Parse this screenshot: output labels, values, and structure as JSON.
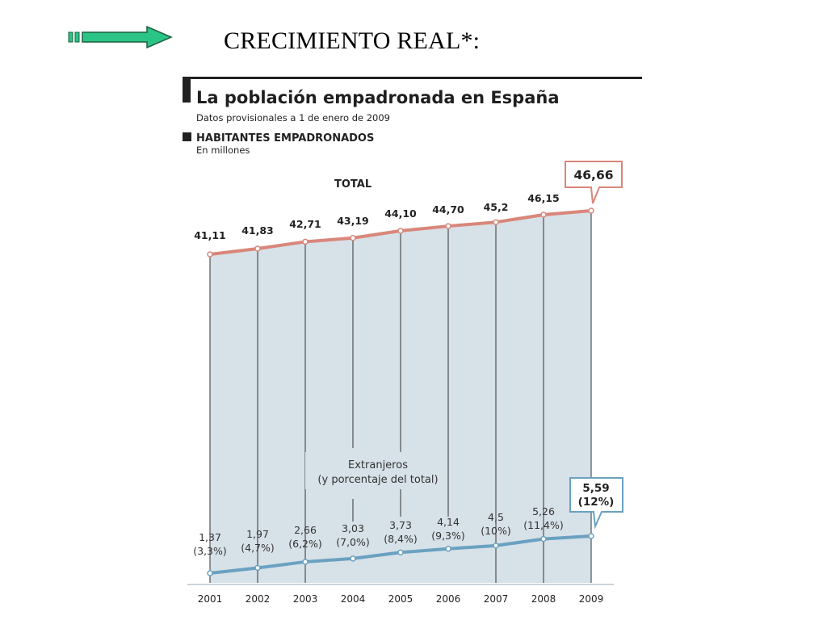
{
  "slide": {
    "title": "CRECIMIENTO REAL*:"
  },
  "colors": {
    "total_line": "#d9867a",
    "foreign_line": "#6aa1c1",
    "area_fill": "#d7e1e8",
    "arrow_fill": "#2bc487",
    "arrow_stroke": "#1f5f3f",
    "header_bar": "#222222"
  },
  "chart_data": {
    "type": "line",
    "title": "La población empadronada en España",
    "subtitle": "Datos provisionales a 1 de enero de 2009",
    "section_label": "HABITANTES EMPADRONADOS",
    "unit_label": "En millones",
    "total_label": "TOTAL",
    "foreign_note_line1": "Extranjeros",
    "foreign_note_line2": "(y porcentaje del total)",
    "categories": [
      "2001",
      "2002",
      "2003",
      "2004",
      "2005",
      "2006",
      "2007",
      "2008",
      "2009"
    ],
    "series": [
      {
        "values": [
          41.11,
          41.83,
          42.71,
          43.19,
          44.1,
          44.7,
          45.2,
          46.15,
          46.66
        ],
        "labels": [
          "41,11",
          "41,83",
          "42,71",
          "43,19",
          "44,10",
          "44,70",
          "45,2",
          "46,15",
          "46,66"
        ]
      },
      {
        "name": "Extranjeros",
        "values": [
          1.37,
          1.97,
          2.66,
          3.03,
          3.73,
          4.14,
          4.5,
          5.26,
          5.59
        ],
        "labels": [
          "1,37",
          "1,97",
          "2,66",
          "3,03",
          "3,73",
          "4,14",
          "4,5",
          "5,26",
          "5,59"
        ],
        "percent_labels": [
          "(3,3%)",
          "(4,7%)",
          "(6,2%)",
          "(7,0%)",
          "(8,4%)",
          "(9,3%)",
          "(10%)",
          "(11,4%)",
          "(12%)"
        ]
      }
    ],
    "highlight_last": true,
    "grid": false,
    "legend": "none"
  }
}
